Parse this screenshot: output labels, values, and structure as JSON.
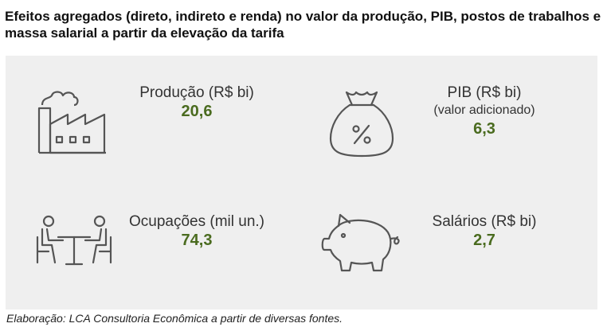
{
  "title": "Efeitos agregados (direto, indireto e renda) no valor da produção, PIB, postos de trabalhos e massa salarial a partir da elevação da tarifa",
  "metrics": {
    "producao": {
      "label": "Produção (R$ bi)",
      "value": "20,6",
      "icon": "factory-icon"
    },
    "pib": {
      "label": "PIB (R$ bi)",
      "sublabel": "(valor adicionado)",
      "value": "6,3",
      "icon": "money-bag-icon"
    },
    "ocupacoes": {
      "label": "Ocupações (mil un.)",
      "value": "74,3",
      "icon": "people-at-table-icon"
    },
    "salarios": {
      "label": "Salários (R$ bi)",
      "value": "2,7",
      "icon": "piggy-bank-icon"
    }
  },
  "colors": {
    "value": "#4a6b1f",
    "panel": "#efefef",
    "icon_stroke": "#555555"
  },
  "source": "Elaboração: LCA Consultoria Econômica a partir de diversas fontes."
}
